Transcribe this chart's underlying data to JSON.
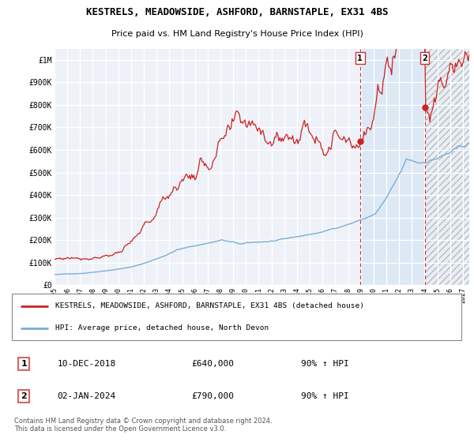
{
  "title": "KESTRELS, MEADOWSIDE, ASHFORD, BARNSTAPLE, EX31 4BS",
  "subtitle": "Price paid vs. HM Land Registry's House Price Index (HPI)",
  "ylim": [
    0,
    1050000
  ],
  "xlim_start": 1995.0,
  "xlim_end": 2027.5,
  "hpi_color": "#7aaed6",
  "price_color": "#cc2222",
  "marker1_date": 2018.94,
  "marker1_price": 640000,
  "marker2_date": 2024.01,
  "marker2_price": 790000,
  "background_plot": "#eef2f8",
  "background_shade1": "#dde8f5",
  "grid_color": "#ffffff",
  "legend_label_red": "KESTRELS, MEADOWSIDE, ASHFORD, BARNSTAPLE, EX31 4BS (detached house)",
  "legend_label_blue": "HPI: Average price, detached house, North Devon",
  "annotation1_text": "10-DEC-2018",
  "annotation1_price_text": "£640,000",
  "annotation1_hpi_text": "90% ↑ HPI",
  "annotation2_text": "02-JAN-2024",
  "annotation2_price_text": "£790,000",
  "annotation2_hpi_text": "90% ↑ HPI",
  "footer": "Contains HM Land Registry data © Crown copyright and database right 2024.\nThis data is licensed under the Open Government Licence v3.0."
}
